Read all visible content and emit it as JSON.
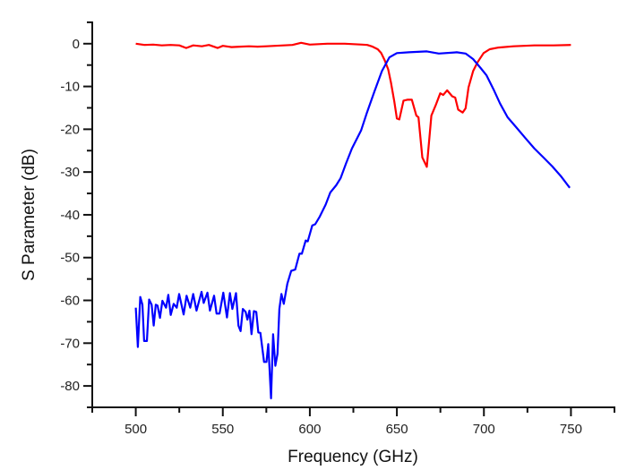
{
  "chart_data": {
    "type": "line",
    "title": "",
    "xlabel": "Frequency (GHz)",
    "ylabel": "S Parameter (dB)",
    "xlim": [
      475,
      775
    ],
    "ylim": [
      -85,
      5
    ],
    "xticks": [
      500,
      550,
      600,
      650,
      700,
      750
    ],
    "xtick_labels": [
      "500",
      "550",
      "600",
      "650",
      "700",
      "750"
    ],
    "xminor_step": 25,
    "yticks": [
      0,
      -10,
      -20,
      -30,
      -40,
      -50,
      -60,
      -70,
      -80
    ],
    "ytick_labels": [
      "0",
      "-10",
      "-20",
      "-30",
      "-40",
      "-50",
      "-60",
      "-70",
      "-80"
    ],
    "yminor_step": 5,
    "grid": false,
    "legend": "none",
    "series": [
      {
        "color": "#ff0000",
        "x": [
          500,
          505,
          510,
          515,
          520,
          525,
          529,
          533,
          538,
          542,
          547,
          550,
          555,
          560,
          565,
          570,
          575,
          580,
          585,
          590,
          595,
          600,
          605,
          610,
          615,
          620,
          625,
          630,
          633,
          636,
          639,
          641,
          643,
          645,
          646.6,
          648.5,
          650,
          651.4,
          653.8,
          656,
          658.6,
          661.2,
          662.4,
          664.6,
          667.2,
          669.8,
          672.3,
          674.9,
          676.6,
          678.9,
          681.8,
          683.5,
          685.2,
          687.8,
          689.5,
          691.2,
          693.8,
          696.4,
          699.8,
          703.3,
          708.4,
          717,
          729,
          740,
          750
        ],
        "y": [
          0,
          -0.3,
          -0.2,
          -0.4,
          -0.3,
          -0.4,
          -1.0,
          -0.4,
          -0.6,
          -0.3,
          -1.0,
          -0.5,
          -0.8,
          -0.7,
          -0.6,
          -0.7,
          -0.6,
          -0.5,
          -0.4,
          -0.3,
          0.2,
          -0.2,
          -0.1,
          0,
          0,
          0,
          -0.1,
          -0.2,
          -0.3,
          -0.7,
          -1.3,
          -2.2,
          -3.9,
          -6,
          -9.1,
          -13.5,
          -17.5,
          -17.7,
          -13.3,
          -13.1,
          -13.1,
          -16.8,
          -17.2,
          -26.6,
          -28.8,
          -16.8,
          -14.4,
          -11.6,
          -12,
          -10.9,
          -12.3,
          -12.6,
          -15.4,
          -16.1,
          -15.1,
          -10.2,
          -6.4,
          -4.3,
          -2.2,
          -1.3,
          -0.9,
          -0.6,
          -0.4,
          -0.4,
          -0.3
        ]
      },
      {
        "color": "#0000ff",
        "x": [
          500,
          501.2,
          502.6,
          503.8,
          504.8,
          506.4,
          507.7,
          509.1,
          510.3,
          511.5,
          512.5,
          513.9,
          515.3,
          517.4,
          518.7,
          520.1,
          521.8,
          523.5,
          524.9,
          527.5,
          529.2,
          531.3,
          533,
          534.9,
          537.8,
          539,
          541.2,
          542.6,
          545,
          546.4,
          548.1,
          550.3,
          552.4,
          554.1,
          555.5,
          557.6,
          559,
          560.2,
          561.5,
          563.1,
          564.1,
          565.3,
          566.5,
          567.9,
          569.2,
          570.4,
          571.6,
          573.7,
          575.1,
          576.1,
          577.7,
          578.9,
          580.2,
          581.4,
          582.5,
          583.7,
          585,
          587.1,
          589.3,
          591.6,
          594,
          595.4,
          597.6,
          598.8,
          601.4,
          603.1,
          605.7,
          609.1,
          611.7,
          615.1,
          617.7,
          620.8,
          624.2,
          629.4,
          632.8,
          637.1,
          641.4,
          645.7,
          650,
          656.9,
          667.2,
          674.1,
          684.4,
          689.5,
          693.8,
          698.1,
          701.5,
          705.8,
          709.3,
          713.6,
          718.7,
          723.9,
          729,
          734.2,
          739.3,
          744.5,
          749.3
        ],
        "y": [
          -61.7,
          -70.9,
          -59.2,
          -61,
          -69.5,
          -69.5,
          -59.8,
          -61,
          -65.9,
          -61,
          -61.2,
          -64.1,
          -60.1,
          -61.7,
          -58.7,
          -63.4,
          -60.8,
          -61.7,
          -58.5,
          -63.3,
          -58.9,
          -61.7,
          -58.5,
          -62.4,
          -58,
          -60.6,
          -58.2,
          -62.4,
          -58.9,
          -63.1,
          -63.1,
          -58.2,
          -64,
          -58.3,
          -62,
          -58.3,
          -65.9,
          -67.2,
          -62,
          -62.7,
          -64.5,
          -62.4,
          -67.9,
          -62.5,
          -62.7,
          -67.5,
          -67.6,
          -74.4,
          -74.4,
          -70.2,
          -82.9,
          -67.9,
          -75.3,
          -72.5,
          -62,
          -58.5,
          -60.8,
          -56.1,
          -53.1,
          -52.8,
          -49.1,
          -49.1,
          -46,
          -46.2,
          -42.5,
          -42.2,
          -40.4,
          -37.6,
          -34.8,
          -33.1,
          -31.4,
          -28,
          -24.5,
          -20.3,
          -16.1,
          -11.2,
          -6.4,
          -3.2,
          -2.2,
          -2,
          -1.8,
          -2.3,
          -2,
          -2.3,
          -3.6,
          -5.7,
          -7.4,
          -10.9,
          -14,
          -17.2,
          -19.6,
          -22.1,
          -24.5,
          -26.6,
          -28.7,
          -31.1,
          -33.7
        ]
      }
    ]
  }
}
